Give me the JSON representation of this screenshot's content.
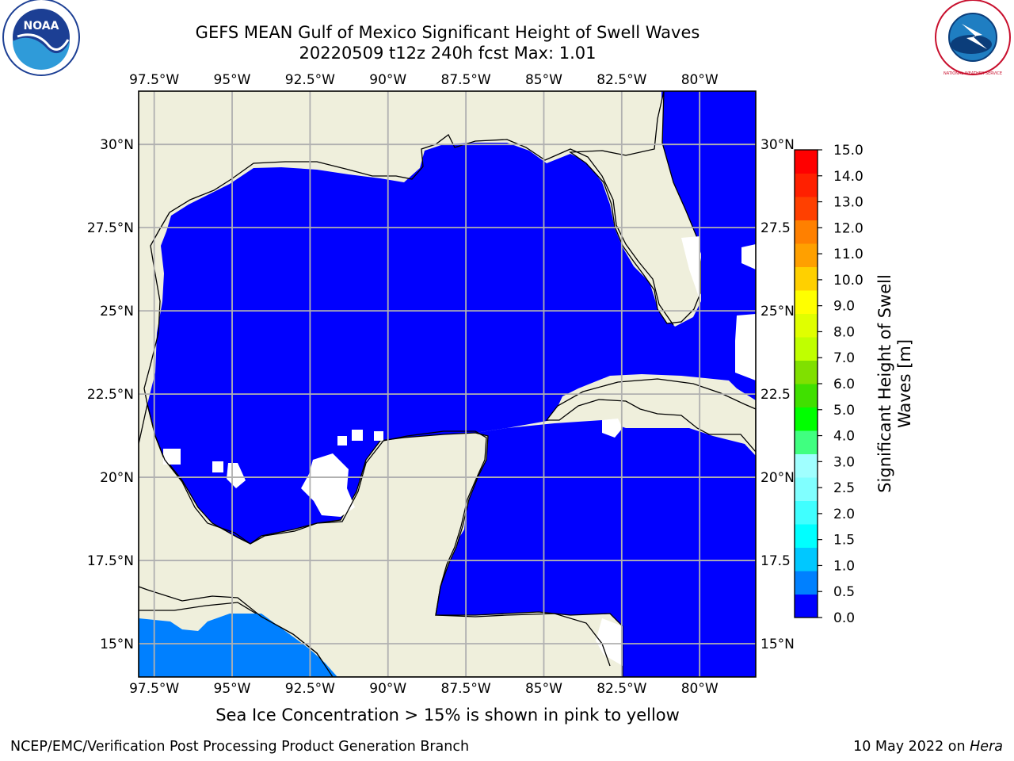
{
  "header": {
    "title_line1": "GEFS MEAN Gulf of Mexico Significant Height of Swell Waves",
    "title_line2": "20220509 t12z 240h fcst   Max: 1.01"
  },
  "logos": {
    "left": "NOAA",
    "left_ring_text": "NATIONAL OCEANIC AND ATMOSPHERIC ADMINISTRATION · U.S. DEPARTMENT OF COMMERCE",
    "right_ring_text": "NATIONAL WEATHER SERVICE"
  },
  "map": {
    "lon_labels": [
      "97.5°W",
      "95°W",
      "92.5°W",
      "90°W",
      "87.5°W",
      "85°W",
      "82.5°W",
      "80°W"
    ],
    "lat_labels_left": [
      "30°N",
      "27.5°N",
      "25°N",
      "22.5°N",
      "20°N",
      "17.5°N",
      "15°N"
    ],
    "lat_labels_right": [
      "30°N",
      "27.5",
      "25°N",
      "22.5",
      "20°N",
      "17.5",
      "15°N"
    ],
    "lon_values": [
      -97.5,
      -95,
      -92.5,
      -90,
      -87.5,
      -85,
      -82.5,
      -80
    ],
    "lat_values": [
      30,
      27.5,
      25,
      22.5,
      20,
      17.5,
      15
    ],
    "extent": {
      "lon_min": -98,
      "lon_max": -78.2,
      "lat_min": 14.0,
      "lat_max": 31.6
    },
    "land_color": "#efefdc",
    "ocean_fill_color": "#0000ff",
    "low_swell_color": "#0080ff"
  },
  "colorbar": {
    "label_line1": "Significant Height of Swell",
    "label_line2": "Waves [m]",
    "ticks": [
      "0.0",
      "0.5",
      "1.0",
      "1.5",
      "2.0",
      "2.5",
      "3.0",
      "4.0",
      "5.0",
      "6.0",
      "7.0",
      "8.0",
      "9.0",
      "10.0",
      "11.0",
      "12.0",
      "13.0",
      "14.0",
      "15.0"
    ],
    "colors": [
      "#0000ff",
      "#0080ff",
      "#00c8ff",
      "#00ffff",
      "#40ffff",
      "#80ffff",
      "#a0ffff",
      "#40ff80",
      "#00ff00",
      "#40e000",
      "#80e000",
      "#c0ff00",
      "#e0ff00",
      "#ffff00",
      "#ffd000",
      "#ffa000",
      "#ff8000",
      "#ff4000",
      "#ff2000",
      "#ff0000"
    ]
  },
  "footer": {
    "note": "Sea Ice Concentration > 15% is shown in pink to yellow",
    "left": "NCEP/EMC/Verification Post Processing Product Generation Branch",
    "right_date": "10 May 2022 on ",
    "right_host": "Hera"
  }
}
